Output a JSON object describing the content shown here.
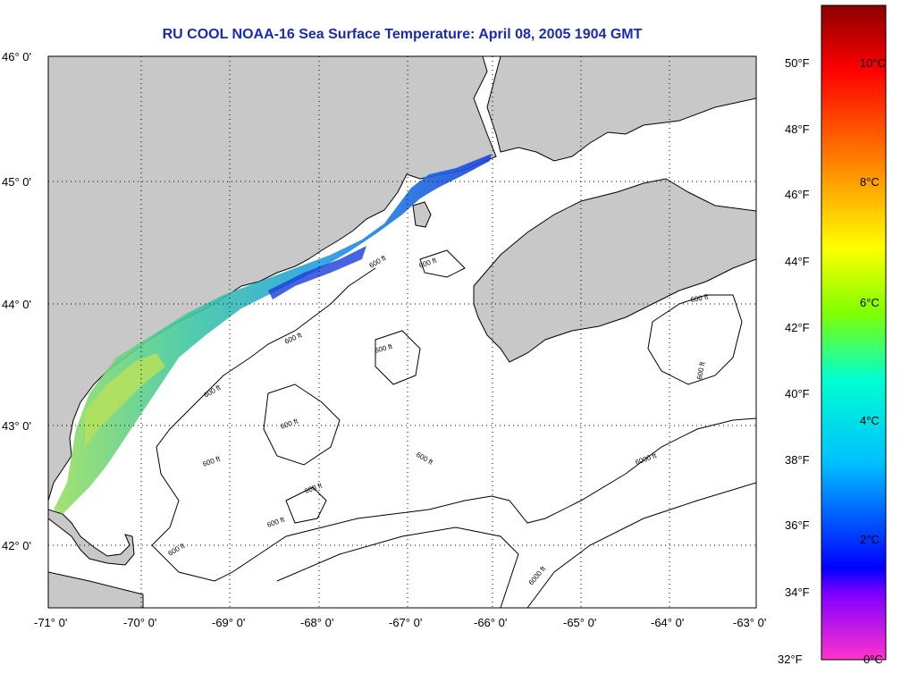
{
  "title": "RU COOL  NOAA-16  Sea Surface Temperature:  April 08, 2005 1904 GMT",
  "lat_labels": [
    "46° 0'",
    "45° 0'",
    "44° 0'",
    "43° 0'",
    "42° 0'"
  ],
  "lon_labels": [
    "-71° 0'",
    "-70° 0'",
    "-69° 0'",
    "-68° 0'",
    "-67° 0'",
    "-66° 0'",
    "-65° 0'",
    "-64° 0'",
    "-63° 0'"
  ],
  "contour_labels": [
    "600 ft",
    "600 ft",
    "600 ft",
    "600 ft",
    "600 ft",
    "600 ft",
    "600 ft",
    "600 ft",
    "600 ft",
    "600 ft",
    "600 ft",
    "600 ft",
    "600 ft",
    "6000 ft",
    "6000 ft"
  ],
  "colorbar": {
    "fahrenheit": [
      "50°F",
      "48°F",
      "46°F",
      "44°F",
      "42°F",
      "40°F",
      "38°F",
      "36°F",
      "34°F",
      "32°F"
    ],
    "celsius": [
      "10°C",
      "8°C",
      "6°C",
      "4°C",
      "2°C",
      "0°C"
    ],
    "colors": [
      "#8b0000",
      "#ff0000",
      "#ff8c00",
      "#ffff00",
      "#7fff00",
      "#00ffd0",
      "#00bfff",
      "#0000ff",
      "#8000ff",
      "#ff33cc"
    ]
  },
  "colors": {
    "land": "#c8c8c8",
    "ocean": "#ffffff",
    "title": "#1a2bb3"
  }
}
